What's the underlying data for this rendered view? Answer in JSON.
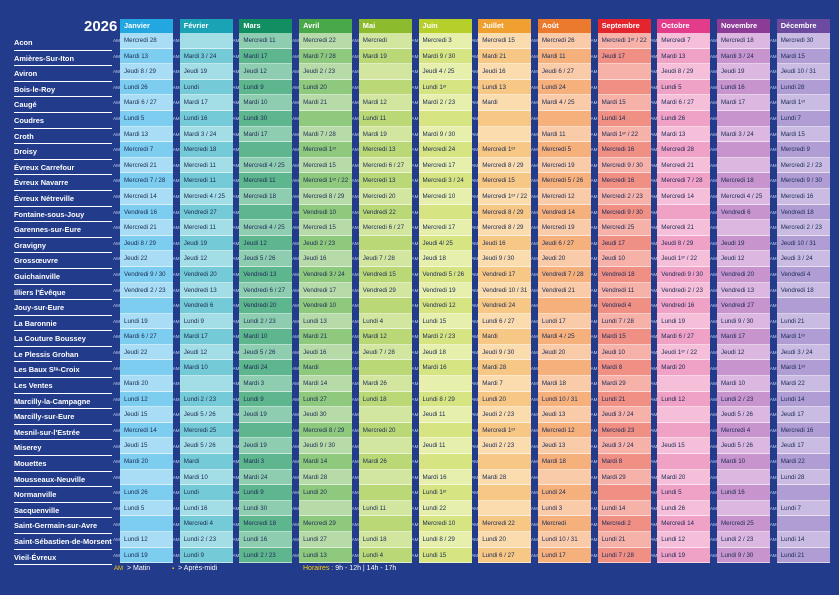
{
  "year": "2026",
  "am_marker": "AM",
  "communes": [
    "Acon",
    "Amières-Sur-Iton",
    "Aviron",
    "Bois-le-Roy",
    "Caugé",
    "Coudres",
    "Croth",
    "Droisy",
    "Évreux Carrefour",
    "Évreux Navarre",
    "Évreux Nétreville",
    "Fontaine-sous-Jouy",
    "Garennes-sur-Eure",
    "Gravigny",
    "Grossœuvre",
    "Guichainville",
    "Illiers l'Évêque",
    "Jouy-sur-Eure",
    "La Baronnie",
    "La Couture Boussey",
    "Le Plessis Grohan",
    "Les Baux Sᵗᵉ-Croix",
    "Les Ventes",
    "Marcilly-la-Campagne",
    "Marcilly-sur-Eure",
    "Mesnil-sur-l'Estrée",
    "Miserey",
    "Mouettes",
    "Mousseaux-Neuville",
    "Normanville",
    "Sacquenville",
    "Saint-Germain-sur-Avre",
    "Saint-Sébastien-de-Morsent",
    "Vieil-Évreux"
  ],
  "months": [
    {
      "name": "Janvier",
      "color": "#22a7e0",
      "shades": [
        "#a8ddf5",
        "#7ccdf0"
      ],
      "cells": [
        "Mercredi 28",
        "Mardi 13",
        "Jeudi 8 / 29",
        "Lundi 26",
        "Mardi 6 / 27",
        "Lundi 5",
        "Mardi 13",
        "Mercredi 7",
        "Mercredi 21",
        "Mercredi 7 / 28",
        "Mercredi 14",
        "Vendredi 16",
        "Mercredi 21",
        "Jeudi 8 / 29",
        "Jeudi 22",
        "Vendredi 9 / 30",
        "Vendredi 2 / 23",
        "",
        "Lundi 19",
        "Mardi 6 / 27",
        "Jeudi 22",
        "",
        "Mardi 20",
        "Lundi 12",
        "Jeudi 15",
        "Mercredi 14",
        "Jeudi 15",
        "Mardi 20",
        "",
        "Lundi 26",
        "Lundi 5",
        "",
        "Lundi 12",
        "Lundi 19"
      ]
    },
    {
      "name": "Février",
      "color": "#1aa3b5",
      "shades": [
        "#a3dde6",
        "#74cad6"
      ],
      "cells": [
        "",
        "Mardi 3 / 24",
        "Jeudi 19",
        "Lundi",
        "Mardi 17",
        "Lundi 16",
        "Mardi 3 / 24",
        "Mercredi 18",
        "Mercredi 11",
        "Mercredi 11",
        "Mercredi 4 / 25",
        "Vendredi 27",
        "Mercredi 11",
        "Jeudi 19",
        "Jeudi 12",
        "Vendredi 20",
        "Vendredi 13",
        "Vendredi 6",
        "Lundi 9",
        "Mardi 17",
        "Jeudi 12",
        "Mardi 10",
        "",
        "Lundi 2 / 23",
        "Jeudi 5 / 26",
        "Mercredi 25",
        "Jeudi 5 / 26",
        "Mardi",
        "Mardi 10",
        "Lundi",
        "Lundi 16",
        "Mercredi 4",
        "Lundi 2 / 23",
        "Lundi 9"
      ]
    },
    {
      "name": "Mars",
      "color": "#128f62",
      "shades": [
        "#8fcdb1",
        "#5db68e"
      ],
      "cells": [
        "Mercredi 11",
        "Mardi 17",
        "Jeudi 12",
        "Lundi 9",
        "Mardi 10",
        "Lundi 30",
        "Mardi 17",
        "",
        "Mercredi 4 / 25",
        "Mercredi 11",
        "Mercredi 18",
        "",
        "Mercredi 4 / 25",
        "Jeudi 12",
        "Jeudi 5 / 26",
        "Vendredi 13",
        "Vendredi 6 / 27",
        "Vendredi 20",
        "Lundi 2 / 23",
        "Mardi 10",
        "Jeudi 5 / 26",
        "Mardi 24",
        "Mardi 3",
        "Lundi 9",
        "Jeudi 19",
        "",
        "Jeudi 19",
        "Mardi 3",
        "Mardi 24",
        "Lundi 9",
        "Lundi 30",
        "Mercredi 18",
        "Lundi 16",
        "Lundi 2 / 23"
      ]
    },
    {
      "name": "Avril",
      "color": "#48a84a",
      "shades": [
        "#b7dba8",
        "#8fc97d"
      ],
      "cells": [
        "Mercredi 22",
        "Mardi 7 / 28",
        "Jeudi 2 / 23",
        "Lundi 20",
        "Mardi 21",
        "",
        "Mardi 7 / 28",
        "Mercredi 1ᵉʳ",
        "Mercredi 15",
        "Mercredi 1ᵉʳ / 22",
        "Mercredi 8 / 29",
        "Vendredi 10",
        "Mercredi 15",
        "Jeudi 2 / 23",
        "Jeudi 16",
        "Vendredi 3 / 24",
        "Vendredi 17",
        "Vendredi 10",
        "Lundi 13",
        "Mardi 21",
        "Jeudi 16",
        "Mardi",
        "Mardi 14",
        "Lundi 27",
        "Jeudi 30",
        "Mercredi 8 / 29",
        "Jeudi 9 / 30",
        "Mardi 14",
        "Mardi 28",
        "Lundi 20",
        "",
        "Mercredi 29",
        "Lundi 27",
        "Lundi 13"
      ]
    },
    {
      "name": "Mai",
      "color": "#8dbb2e",
      "shades": [
        "#d2e6a0",
        "#bbd877"
      ],
      "cells": [
        "Mercredi",
        "Mardi 19",
        "",
        "",
        "Mardi 12",
        "Lundi 11",
        "Mardi 19",
        "Mercredi 13",
        "Mercredi 6 / 27",
        "Mercredi 13",
        "Mercredi 20",
        "Vendredi 22",
        "Mercredi 6 / 27",
        "",
        "Jeudi 7 / 28",
        "Vendredi 15",
        "Vendredi 29",
        "",
        "Lundi 4",
        "Mardi 12",
        "Jeudi 7 / 28",
        "",
        "Mardi 26",
        "Lundi 18",
        "",
        "Mercredi 20",
        "",
        "Mardi 26",
        "",
        "",
        "Lundi 11",
        "",
        "Lundi 18",
        "Lundi 4"
      ]
    },
    {
      "name": "Juin",
      "color": "#b7cf2a",
      "shades": [
        "#e7efac",
        "#d7e482"
      ],
      "cells": [
        "Mercredi 3",
        "Mardi 9 / 30",
        "Jeudi 4 / 25",
        "Lundi 1ᵉʳ",
        "Mardi 2 / 23",
        "",
        "Mardi 9 / 30",
        "Mercredi 24",
        "Mercredi 17",
        "Mercredi 3 / 24",
        "Mercredi 10",
        "",
        "Mercredi 17",
        "Jeudi 4/ 25",
        "Jeudi 18",
        "Vendredi 5 / 26",
        "Vendredi 19",
        "Vendredi 12",
        "Lundi 15",
        "Mardi 2 / 23",
        "Jeudi 18",
        "Mardi 16",
        "",
        "Lundi 8 / 29",
        "Jeudi 11",
        "",
        "Jeudi 11",
        "",
        "Mardi 16",
        "Lundi 1ᵉʳ",
        "Lundi 22",
        "Mercredi 10",
        "Lundi 8 / 29",
        "Lundi 15"
      ]
    },
    {
      "name": "Juillet",
      "color": "#f0a030",
      "shades": [
        "#fadcae",
        "#f7c885"
      ],
      "cells": [
        "Mercredi 15",
        "Mardi 21",
        "Jeudi 16",
        "Lundi 13",
        "Mardi",
        "",
        "",
        "Mercredi 1ᵉʳ",
        "Mercredi 8 / 29",
        "Mercredi 15",
        "Mercredi 1ᵉʳ / 22",
        "Mercredi 8 / 29",
        "Mercredi 8 / 29",
        "Jeudi 16",
        "Jeudi 9 / 30",
        "Vendredi 17",
        "Vendredi 10 / 31",
        "Vendredi 24",
        "Lundi 6 / 27",
        "Mardi",
        "Jeudi 9 / 30",
        "Mardi 28",
        "Mardi 7",
        "Lundi 20",
        "Jeudi 2 / 23",
        "Mercredi 1ᵉʳ",
        "Jeudi 2 / 23",
        "",
        "Mardi 28",
        "",
        "",
        "Mercredi 22",
        "Lundi 20",
        "Lundi 6 / 27"
      ]
    },
    {
      "name": "Août",
      "color": "#ec7a2e",
      "shades": [
        "#f9cba8",
        "#f5b07c"
      ],
      "cells": [
        "Mercredi 26",
        "Mardi 11",
        "Jeudi 6 / 27",
        "Lundi 24",
        "Mardi 4 / 25",
        "",
        "Mardi 11",
        "Mercredi 5",
        "Mercredi 19",
        "Mercredi 5 / 26",
        "Mercredi 12",
        "Vendredi 14",
        "Mercredi 19",
        "Jeudi 6 / 27",
        "Jeudi 20",
        "Vendredi 7 / 28",
        "Vendredi 21",
        "",
        "Lundi 17",
        "Mardi 4 / 25",
        "Jeudi 20",
        "",
        "Mardi 18",
        "Lundi 10 / 31",
        "Jeudi 13",
        "Mercredi 12",
        "Jeudi 13",
        "Mardi 18",
        "",
        "Lundi 24",
        "Lundi 3",
        "Mercredi",
        "Lundi 10 / 31",
        "Lundi 17"
      ]
    },
    {
      "name": "Septembre",
      "color": "#e5252d",
      "shades": [
        "#f6b1a8",
        "#f08f84"
      ],
      "cells": [
        "Mercredi 1ᵉʳ / 22",
        "Jeudi 17",
        "",
        "",
        "Mardi 15",
        "Lundi 14",
        "Mardi 1ᵉʳ / 22",
        "Mercredi 16",
        "Mercredi 9 / 30",
        "Mercredi 16",
        "Mercredi 2 / 23",
        "Mercredi 9 / 30",
        "Mercredi 25",
        "Jeudi 17",
        "Jeudi 10",
        "Vendredi 18",
        "Vendredi 11",
        "Vendredi 4",
        "Lundi 7 / 28",
        "Mardi 15",
        "Jeudi 10",
        "Mardi 8",
        "Mardi 29",
        "Lundi 21",
        "Jeudi 3 / 24",
        "Mercredi 23",
        "Jeudi 3 / 24",
        "Mardi 8",
        "Mardi 29",
        "",
        "Lundi 14",
        "Mercredi 2",
        "Lundi 21",
        "Lundi 7 / 28"
      ]
    },
    {
      "name": "Octobre",
      "color": "#e23c8a",
      "shades": [
        "#f6bfd9",
        "#efa1c6"
      ],
      "cells": [
        "Mercredi 7",
        "Mardi 13",
        "Jeudi 8 / 29",
        "Lundi 5",
        "Mardi 6 / 27",
        "Lundi 26",
        "Mardi 13",
        "Mercredi 28",
        "Mercredi 21",
        "Mercredi 7 / 28",
        "Mercredi 14",
        "",
        "Mercredi 21",
        "Jeudi 8 / 29",
        "Jeudi 1ᵉʳ / 22",
        "Vendredi 9 / 30",
        "Vendredi 2 / 23",
        "Vendredi 16",
        "Lundi 19",
        "Mardi 6 / 27",
        "Jeudi 1ᵉʳ / 22",
        "Mardi 20",
        "",
        "Lundi 12",
        "",
        "",
        "Jeudi 15",
        "",
        "Mardi 20",
        "Lundi 5",
        "Lundi 26",
        "Mercredi 14",
        "Lundi 12",
        "Lundi 19"
      ]
    },
    {
      "name": "Novembre",
      "color": "#8c3b96",
      "shades": [
        "#dcb7e0",
        "#c794ce"
      ],
      "cells": [
        "Mercredi 18",
        "Mardi 3 / 24",
        "Jeudi 19",
        "Lundi 16",
        "Mardi 17",
        "",
        "Mardi 3 / 24",
        "",
        "",
        "Mercredi 18",
        "Mercredi 4 / 25",
        "Vendredi 6",
        "",
        "Jeudi 19",
        "Jeudi 12",
        "Vendredi 20",
        "Vendredi 13",
        "Vendredi 27",
        "Lundi 9 / 30",
        "Mardi 17",
        "Jeudi 12",
        "",
        "Mardi 10",
        "Lundi 2 / 23",
        "Jeudi 5 / 26",
        "Mercredi 4",
        "Jeudi 5 / 26",
        "Mardi 10",
        "",
        "Lundi 16",
        "",
        "Mercredi 25",
        "Lundi 2 / 23",
        "Lundi 9 / 30"
      ]
    },
    {
      "name": "Décembre",
      "color": "#6b4aa0",
      "shades": [
        "#c9bbe2",
        "#b09dd4"
      ],
      "cells": [
        "Mercredi 30",
        "Mardi 15",
        "Jeudi 10 / 31",
        "Lundi 28",
        "Mardi 1ᵉʳ",
        "Lundi 7",
        "Mardi 15",
        "Mercredi 9",
        "Mercredi 2 / 23",
        "Mercredi 9 / 30",
        "Mercredi 16",
        "Vendredi 18",
        "Mercredi 2 / 23",
        "Jeudi 10 / 31",
        "Jeudi 3 / 24",
        "Vendredi 4",
        "Vendredi 18",
        "",
        "Lundi 21",
        "Mardi 1ᵉʳ",
        "Jeudi 3 / 24",
        "Mardi 1ᵉʳ",
        "Mardi 22",
        "Lundi 14",
        "Jeudi 17",
        "Mercredi 16",
        "Jeudi 17",
        "Mardi 22",
        "Lundi 28",
        "",
        "Lundi 7",
        "",
        "Lundi 14",
        "Lundi 21"
      ]
    }
  ],
  "legend": {
    "matin": "> Matin",
    "apres_midi": ">  Après-midi",
    "horaires_label": "Horaires :",
    "horaires_value": " 9h - 12h | 14h - 17h"
  },
  "colors": {
    "background": "#223b8a",
    "year_label": "#ffffff",
    "accent": "#ffd200"
  }
}
